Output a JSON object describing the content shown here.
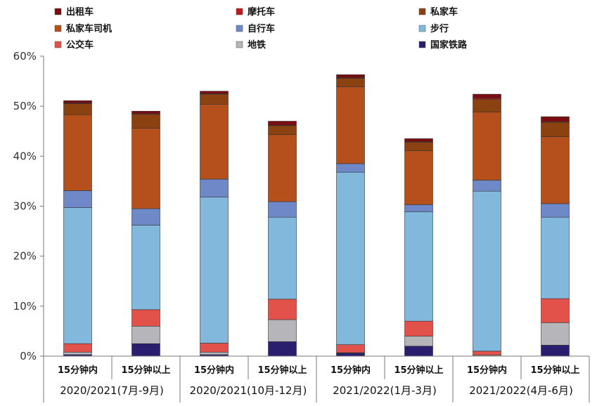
{
  "chart_data": {
    "type": "bar",
    "stacked": true,
    "title": "",
    "xlabel": "",
    "ylabel": "",
    "ylim": [
      0,
      60
    ],
    "yticks": [
      "0%",
      "10%",
      "20%",
      "30%",
      "40%",
      "50%",
      "60%"
    ],
    "grid": false,
    "legend_position": "top",
    "categories": [
      "15分钟内",
      "15分钟以上",
      "15分钟内",
      "15分钟以上",
      "15分钟内",
      "15分钟以上",
      "15分钟内",
      "15分钟以上"
    ],
    "groups": [
      "2020/2021(7月-9月)",
      "2020/2021(10月-12月)",
      "2021/2022(1月-3月)",
      "2021/2022(4月-6月)"
    ],
    "series": [
      {
        "name": "国家铁路",
        "color": "#2a1f6e",
        "values": [
          0.3,
          2.5,
          0.3,
          2.9,
          0.6,
          2.0,
          0.0,
          2.2
        ]
      },
      {
        "name": "地铁",
        "color": "#b6b6ba",
        "values": [
          0.5,
          3.5,
          0.5,
          4.4,
          0.1,
          2.0,
          0.2,
          4.5
        ]
      },
      {
        "name": "公交车",
        "color": "#e3514b",
        "values": [
          1.7,
          3.3,
          1.8,
          4.1,
          1.6,
          3.0,
          0.8,
          4.8
        ]
      },
      {
        "name": "步行",
        "color": "#82b8dc",
        "values": [
          27.2,
          16.9,
          29.2,
          16.4,
          34.5,
          21.9,
          32.0,
          16.3
        ]
      },
      {
        "name": "自行车",
        "color": "#6f89c8",
        "values": [
          3.4,
          3.3,
          3.6,
          3.1,
          1.7,
          1.4,
          2.2,
          2.7
        ]
      },
      {
        "name": "私家车司机",
        "color": "#b5501c",
        "values": [
          15.2,
          16.1,
          15.0,
          13.4,
          15.4,
          10.8,
          13.6,
          13.4
        ]
      },
      {
        "name": "私家车",
        "color": "#8b4210",
        "values": [
          2.2,
          2.8,
          2.0,
          1.8,
          1.7,
          1.7,
          2.6,
          2.9
        ]
      },
      {
        "name": "摩托车",
        "color": "#c01818",
        "values": [
          0.1,
          0.1,
          0.1,
          0.1,
          0.1,
          0.1,
          0.2,
          0.1
        ]
      },
      {
        "name": "出租车",
        "color": "#7a0d12",
        "values": [
          0.5,
          0.5,
          0.5,
          0.8,
          0.6,
          0.6,
          0.8,
          1.0
        ]
      }
    ],
    "legend_order": [
      "出租车",
      "摩托车",
      "私家车",
      "私家车司机",
      "自行车",
      "步行",
      "公交车",
      "地铁",
      "国家铁路"
    ]
  }
}
